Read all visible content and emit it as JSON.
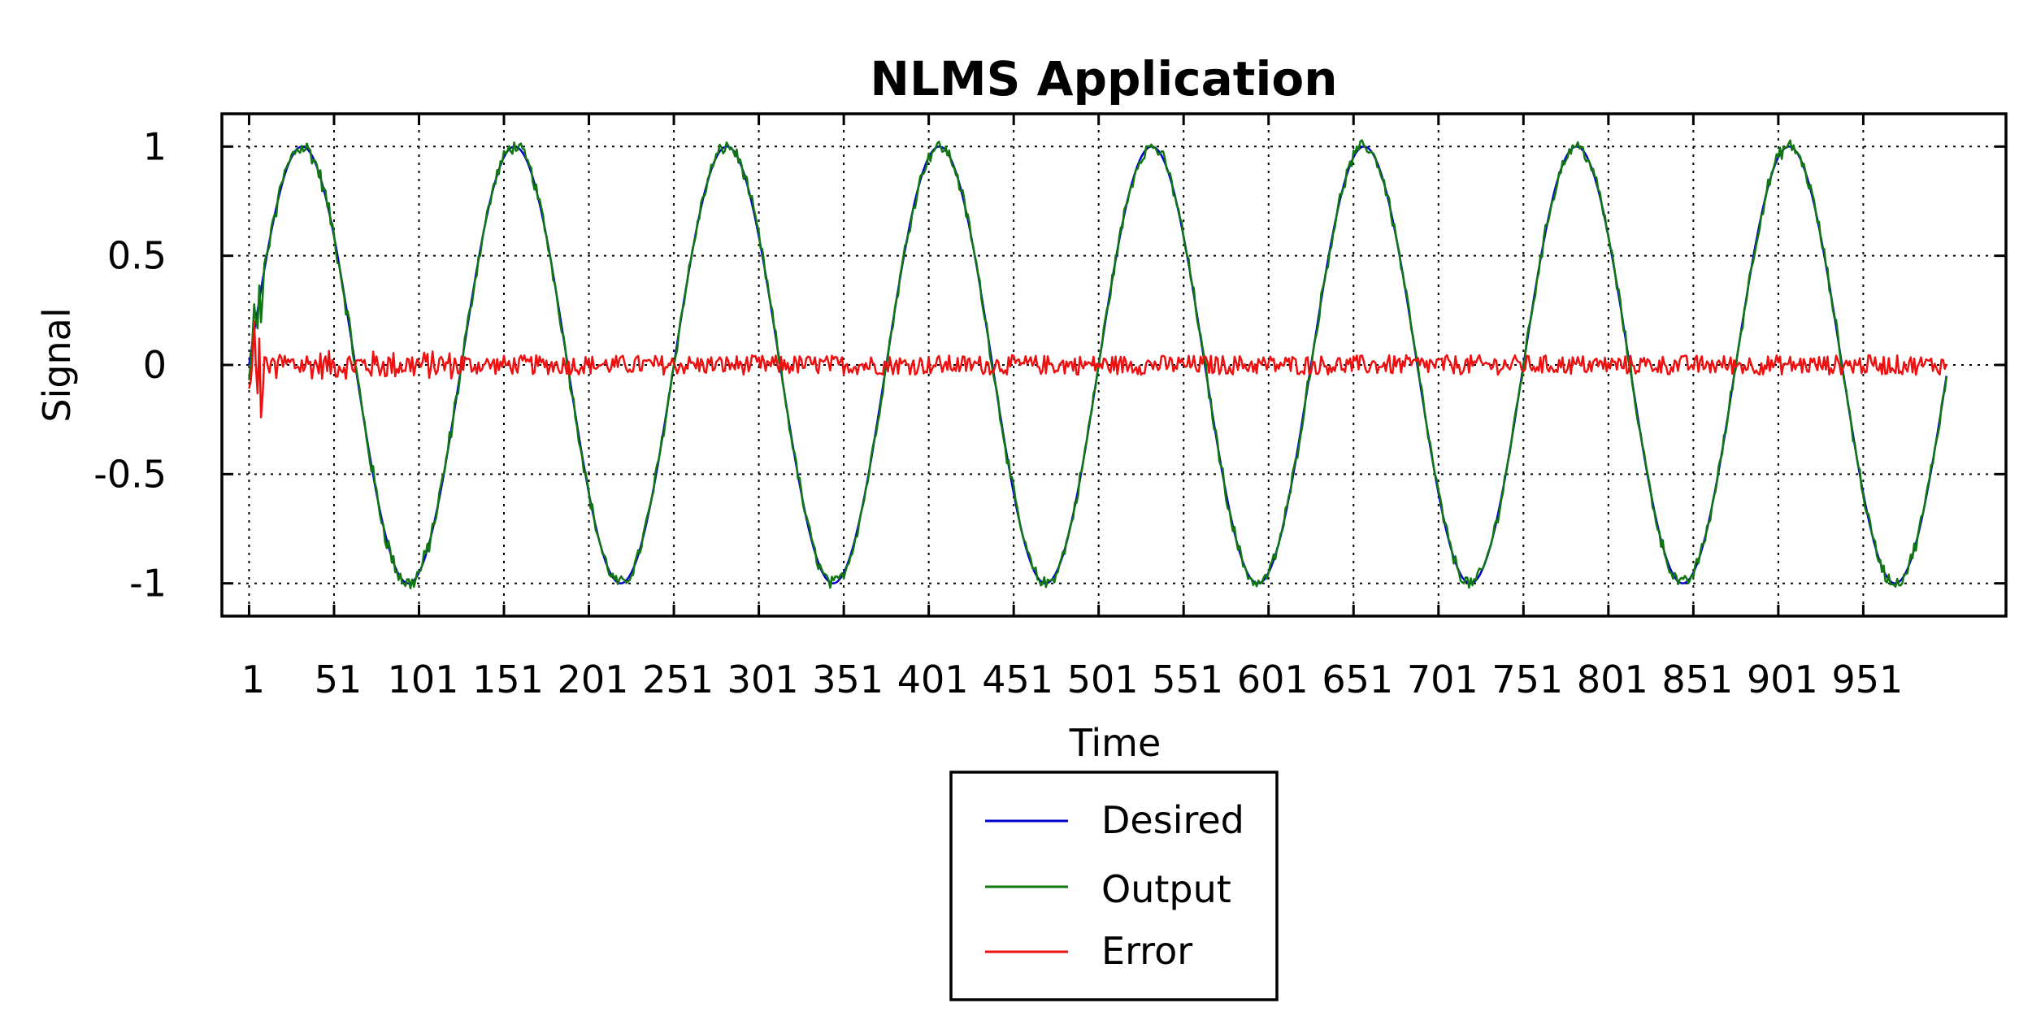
{
  "chart_data": {
    "type": "line",
    "title": "NLMS Application",
    "xlabel": "Time",
    "ylabel": "Signal",
    "xlim": [
      -15,
      1035
    ],
    "ylim": [
      -1.15,
      1.15
    ],
    "x_ticks": [
      1,
      51,
      101,
      151,
      201,
      251,
      301,
      351,
      401,
      451,
      501,
      551,
      601,
      651,
      701,
      751,
      801,
      851,
      901,
      951
    ],
    "y_ticks": [
      1,
      0.5,
      0,
      -0.5,
      -1
    ],
    "y_tick_labels": [
      "1",
      "0.5",
      "0",
      "-0.5",
      "-1"
    ],
    "grid": true,
    "legend_position": "bottom-center",
    "x_range": [
      1,
      1000
    ],
    "sine_period": 125,
    "sine_amplitude": 1,
    "series": [
      {
        "name": "Desired",
        "color": "#0000cc",
        "description": "sine wave, period 125 samples, amplitude 1"
      },
      {
        "name": "Output",
        "color": "#117711",
        "description": "NLMS filter output tracking desired with small noise"
      },
      {
        "name": "Error",
        "color": "#ee1111",
        "description": "error signal, transient near 0.2 to -0.24 at start, then about ±0.05 around 0"
      }
    ]
  }
}
